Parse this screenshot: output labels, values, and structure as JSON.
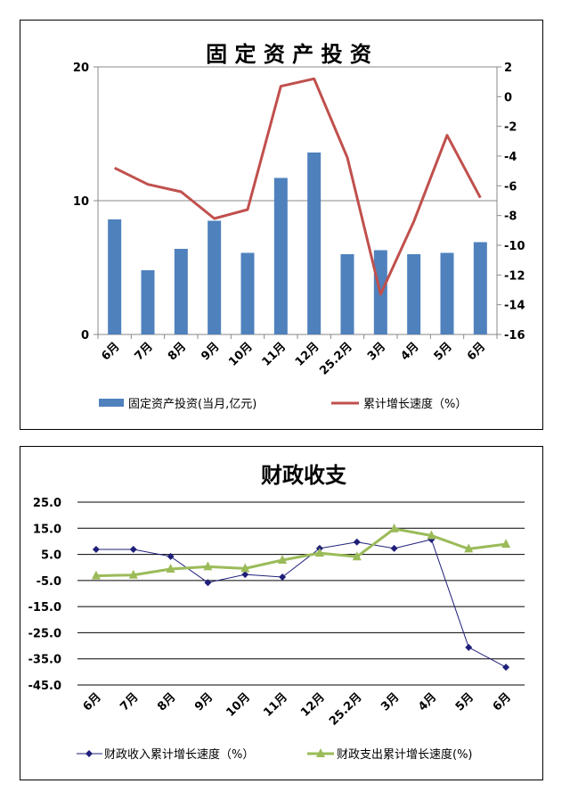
{
  "chart_data": [
    {
      "type": "bar+line",
      "title": "固 定 资 产 投 资",
      "categories": [
        "6月",
        "7月",
        "8月",
        "9月",
        "10月",
        "11月",
        "12月",
        "25.2月",
        "3月",
        "4月",
        "5月",
        "6月"
      ],
      "series": [
        {
          "name": "固定资产投资(当月,亿元)",
          "type": "bar",
          "axis": "left",
          "color": "#4f81bd",
          "values": [
            8.6,
            4.8,
            6.4,
            8.5,
            6.1,
            11.7,
            13.6,
            6.0,
            6.3,
            6.0,
            6.1,
            6.9
          ]
        },
        {
          "name": "累计增长速度（%）",
          "type": "line",
          "axis": "right",
          "color": "#c0504d",
          "values": [
            -4.8,
            -5.9,
            -6.4,
            -8.2,
            -7.6,
            0.7,
            1.2,
            -4.1,
            -13.3,
            -8.4,
            -2.6,
            -6.8
          ]
        }
      ],
      "yleft": {
        "ylim": [
          0,
          20
        ],
        "ticks": [
          "0",
          "10",
          "20"
        ]
      },
      "yright": {
        "ylim": [
          -16,
          2
        ],
        "ticks": [
          "2",
          "0",
          "-2",
          "-4",
          "-6",
          "-8",
          "-10",
          "-12",
          "-14",
          "-16"
        ]
      },
      "grid": true,
      "legend": "bottom"
    },
    {
      "type": "line",
      "title": "财政收支",
      "categories": [
        "6月",
        "7月",
        "8月",
        "9月",
        "10月",
        "11月",
        "12月",
        "25.2月",
        "3月",
        "4月",
        "5月",
        "6月"
      ],
      "series": [
        {
          "name": "财政收入累计增长速度（%）",
          "color": "#1f1f7a",
          "marker": "diamond",
          "values": [
            6.9,
            6.9,
            4.2,
            -5.8,
            -2.7,
            -3.7,
            7.3,
            9.7,
            7.3,
            10.7,
            -30.6,
            -38.2
          ]
        },
        {
          "name": "财政支出累计增长速度(%)",
          "color": "#9bbb59",
          "marker": "triangle",
          "values": [
            -3.2,
            -2.9,
            -0.6,
            0.3,
            -0.4,
            2.8,
            5.5,
            4.1,
            14.8,
            12.2,
            7.1,
            8.9
          ]
        }
      ],
      "ylim": [
        -45,
        25
      ],
      "ticks": [
        "25.0",
        "15.0",
        "5.0",
        "-5.0",
        "-15.0",
        "-25.0",
        "-35.0",
        "-45.0"
      ],
      "grid": true,
      "legend": "bottom"
    }
  ]
}
